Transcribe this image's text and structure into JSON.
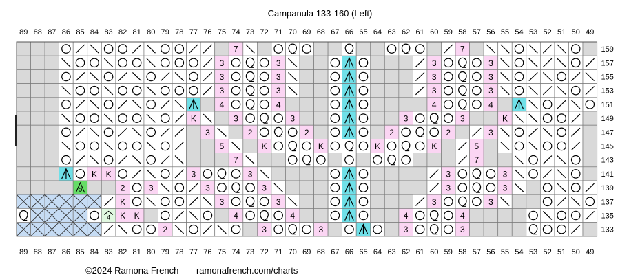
{
  "title": "Campanula 133-160 (Left)",
  "footer": {
    "copyright": "©2024 Ramona French",
    "url": "ramonafrench.com/charts"
  },
  "colors": {
    "empty": "#d9d9d9",
    "white": "#ffffff",
    "pink": "#fbd5f3",
    "cyan": "#6fe0e8",
    "green": "#66dd66",
    "lightgreen": "#e0f8e0",
    "blue": "#c6dcf4",
    "grid": "#7a7a7a"
  },
  "columns": [
    89,
    88,
    87,
    86,
    85,
    84,
    83,
    82,
    81,
    80,
    79,
    78,
    77,
    76,
    75,
    74,
    73,
    72,
    71,
    70,
    69,
    68,
    67,
    66,
    65,
    64,
    63,
    62,
    61,
    60,
    59,
    58,
    57,
    56,
    55,
    54,
    53,
    52,
    51,
    50,
    49
  ],
  "row_labels": [
    "159",
    "157",
    "155",
    "153",
    "151",
    "149",
    "147",
    "145",
    "143",
    "141",
    "139",
    "137",
    "135",
    "133"
  ],
  "legend_codes": {
    ".": "no stitch",
    "_": "knit",
    "o": "yarn over",
    "/": "k2tog",
    "\\": "ssk",
    "q": "twisted stitch",
    "A": "centered double decrease",
    "K": "knit",
    "3": "3",
    "4": "4",
    "5": "5",
    "7": "7",
    "2": "2",
    "X": "cable",
    "g": "bobble",
    "h": "4"
  },
  "rows": [
    [
      "...",
      "_o/\\_oo/\\oo/_.._7\\_qq__q__oqo__/7_\\\\o\\/\\o_"
    ],
    [
      "...\\oo\\oo\\oo\\/3oqoq3\\_oAo___/3oqo3\\o\\/\\oo/"
    ],
    [
      "...o/\\o/\\o/\\o/3oqoq3\\_oAo___/3oqo3\\o/\\o/\\o"
    ],
    [
      "...\\oo\\oo\\oo\\o/3oqoq3\\_oAo___/3oqo3\\o\\/\\oo/"
    ],
    [
      "...o/\\o/\\o/\\A.4oqoq4__oAo___/4oqo4\\A\\o/\\o"
    ],
    [
      "...\\oo\\oo\\o/K\\.3oqo3\\oAo__3oqo3\\.K\\\\oo/"
    ],
    [
      "...o/\\o/\\o/.3\\.2oqo2\\oAo_2oqo2\\.3\\o/\\o"
    ],
    [
      "...\\oo\\oo\\o/..5\\.KoqoKoqoKoqoK./5\\..\\o/"
    ],
    [
      "...o/\\o/\\o/\\..7\\..oqo.oqo.oqo..7\\..o/\\o"
    ],
    [
      "...AoKKo/\\o/3oqo3\\..oAo.../3oqo3\\_o/\\o"
    ],
    [
      "....g.2o3\\o/3oqo3\\..oAo...../3oqo3\\o\\oo/"
    ],
    [
      "XXXX/KoXoo/\\3oqo3\\..oAo.../3oqo3\\...o/\\o"
    ],
    [
      "qXXoqhKK.o/\\o.4oqo4..oAo..4oqo4....\\o\\oo/"
    ],
    [
      "XXXX/\\oo/2\\o/\\o.3oqo3..oAo.3oqo3.....qoo/"
    ]
  ]
}
